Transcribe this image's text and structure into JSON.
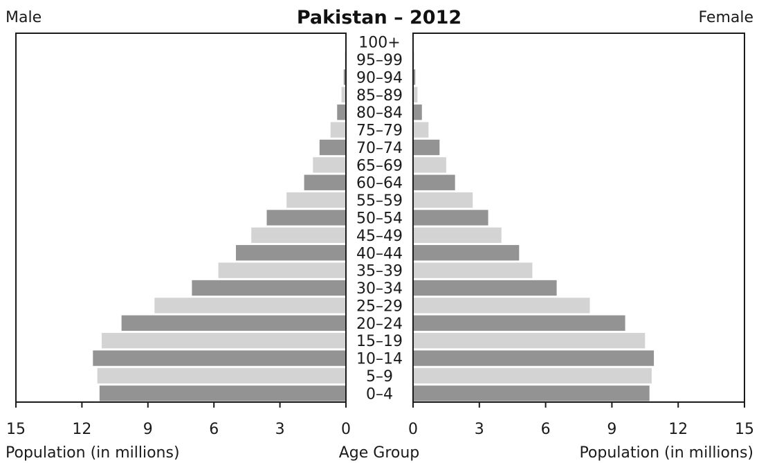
{
  "chart_data": {
    "type": "bar",
    "subtype": "population-pyramid",
    "title": "Pakistan – 2012",
    "left_label": "Male",
    "right_label": "Female",
    "xlabel_left": "Population (in millions)",
    "xlabel_right": "Population (in millions)",
    "center_label": "Age Group",
    "xlim": [
      0,
      15
    ],
    "ticks": [
      "0",
      "3",
      "6",
      "9",
      "12",
      "15"
    ],
    "grid": false,
    "colors": {
      "dark": "#939393",
      "light": "#d3d3d3",
      "axis": "#1a1a1a"
    },
    "categories": [
      "0–4",
      "5–9",
      "10–14",
      "15–19",
      "20–24",
      "25–29",
      "30–34",
      "35–39",
      "40–44",
      "45–49",
      "50–54",
      "55–59",
      "60–64",
      "65–69",
      "70–74",
      "75–79",
      "80–84",
      "85–89",
      "90–94",
      "95–99",
      "100+"
    ],
    "series": [
      {
        "name": "Male",
        "values": [
          11.2,
          11.3,
          11.5,
          11.1,
          10.2,
          8.7,
          7.0,
          5.8,
          5.0,
          4.3,
          3.6,
          2.7,
          1.9,
          1.5,
          1.2,
          0.7,
          0.4,
          0.2,
          0.1,
          0.05,
          0.02
        ]
      },
      {
        "name": "Female",
        "values": [
          10.7,
          10.8,
          10.9,
          10.5,
          9.6,
          8.0,
          6.5,
          5.4,
          4.8,
          4.0,
          3.4,
          2.7,
          1.9,
          1.5,
          1.2,
          0.7,
          0.4,
          0.2,
          0.1,
          0.05,
          0.03
        ]
      }
    ]
  }
}
